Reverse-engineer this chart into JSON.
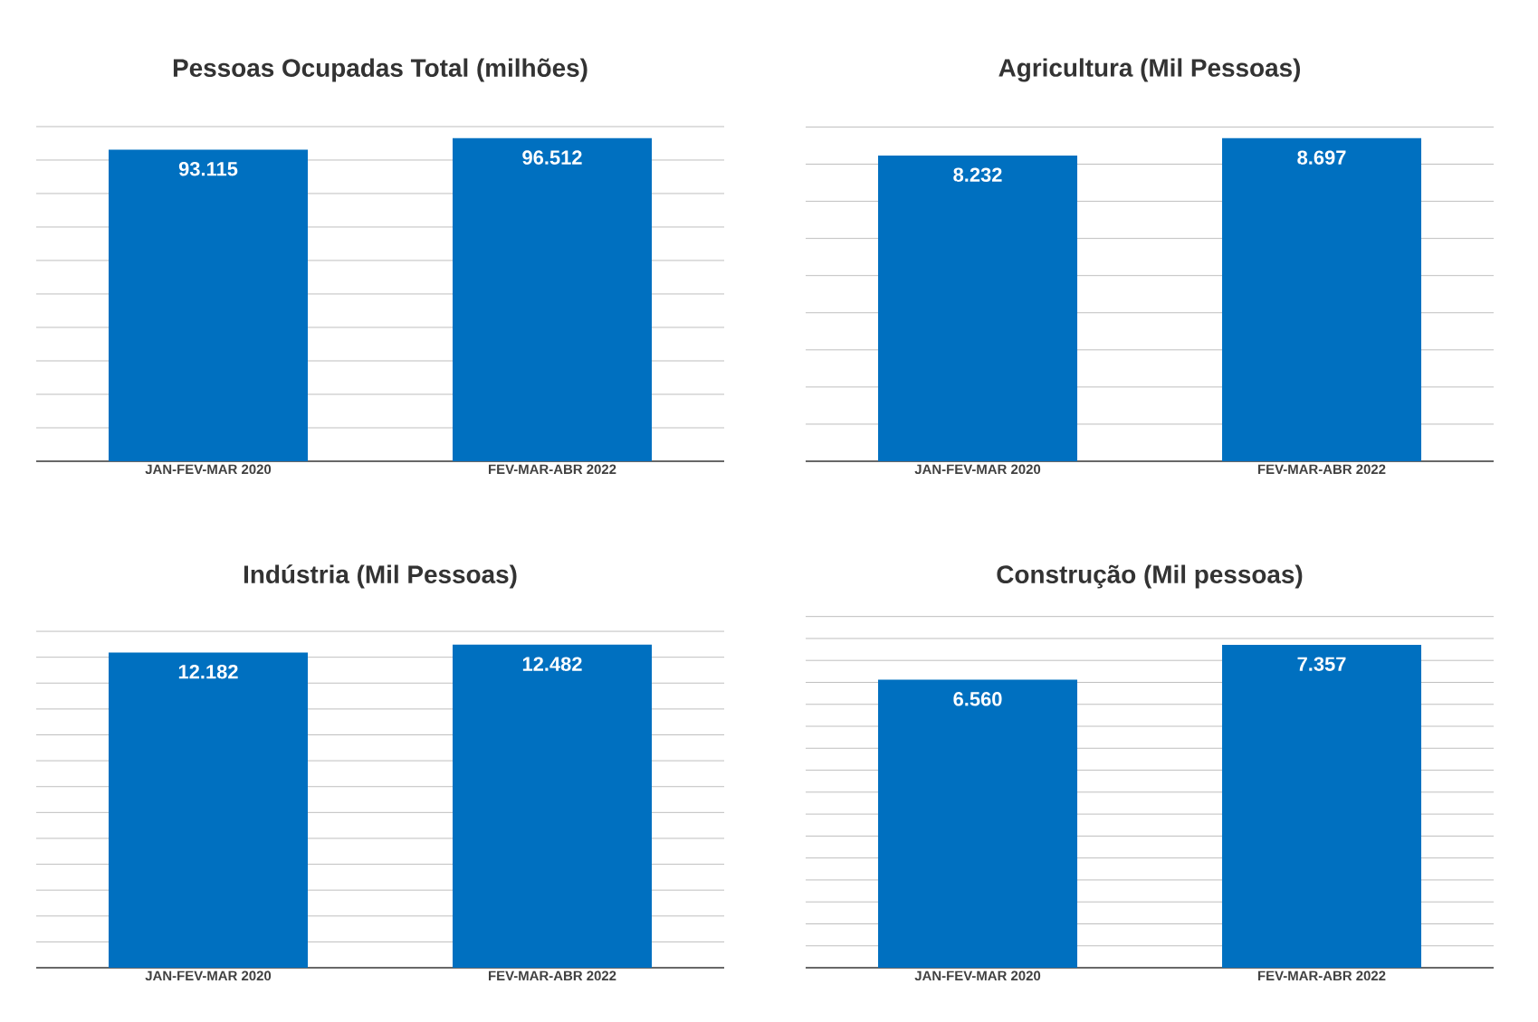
{
  "chart_data": [
    {
      "type": "bar",
      "title": "Pessoas Ocupadas Total (milhões)",
      "categories": [
        "JAN-FEV-MAR 2020",
        "FEV-MAR-ABR 2022"
      ],
      "values": [
        93.115,
        96.512
      ],
      "value_labels": [
        "93.115",
        "96.512"
      ],
      "color": "#0070c0",
      "grid": "y",
      "tick_labels": "x"
    },
    {
      "type": "bar",
      "title": "Agricultura (Mil Pessoas)",
      "categories": [
        "JAN-FEV-MAR 2020",
        "FEV-MAR-ABR 2022"
      ],
      "values": [
        8.232,
        8.697
      ],
      "value_labels": [
        "8.232",
        "8.697"
      ],
      "color": "#0070c0",
      "grid": "y",
      "tick_labels": "x"
    },
    {
      "type": "bar",
      "title": "Indústria (Mil Pessoas)",
      "categories": [
        "JAN-FEV-MAR 2020",
        "FEV-MAR-ABR 2022"
      ],
      "values": [
        12.182,
        12.482
      ],
      "value_labels": [
        "12.182",
        "12.482"
      ],
      "color": "#0070c0",
      "grid": "y",
      "tick_labels": "x"
    },
    {
      "type": "bar",
      "title": "Construção (Mil pessoas)",
      "categories": [
        "JAN-FEV-MAR 2020",
        "FEV-MAR-ABR 2022"
      ],
      "values": [
        6.56,
        7.357
      ],
      "value_labels": [
        "6.560",
        "7.357"
      ],
      "color": "#0070c0",
      "grid": "y",
      "tick_labels": "x"
    }
  ]
}
